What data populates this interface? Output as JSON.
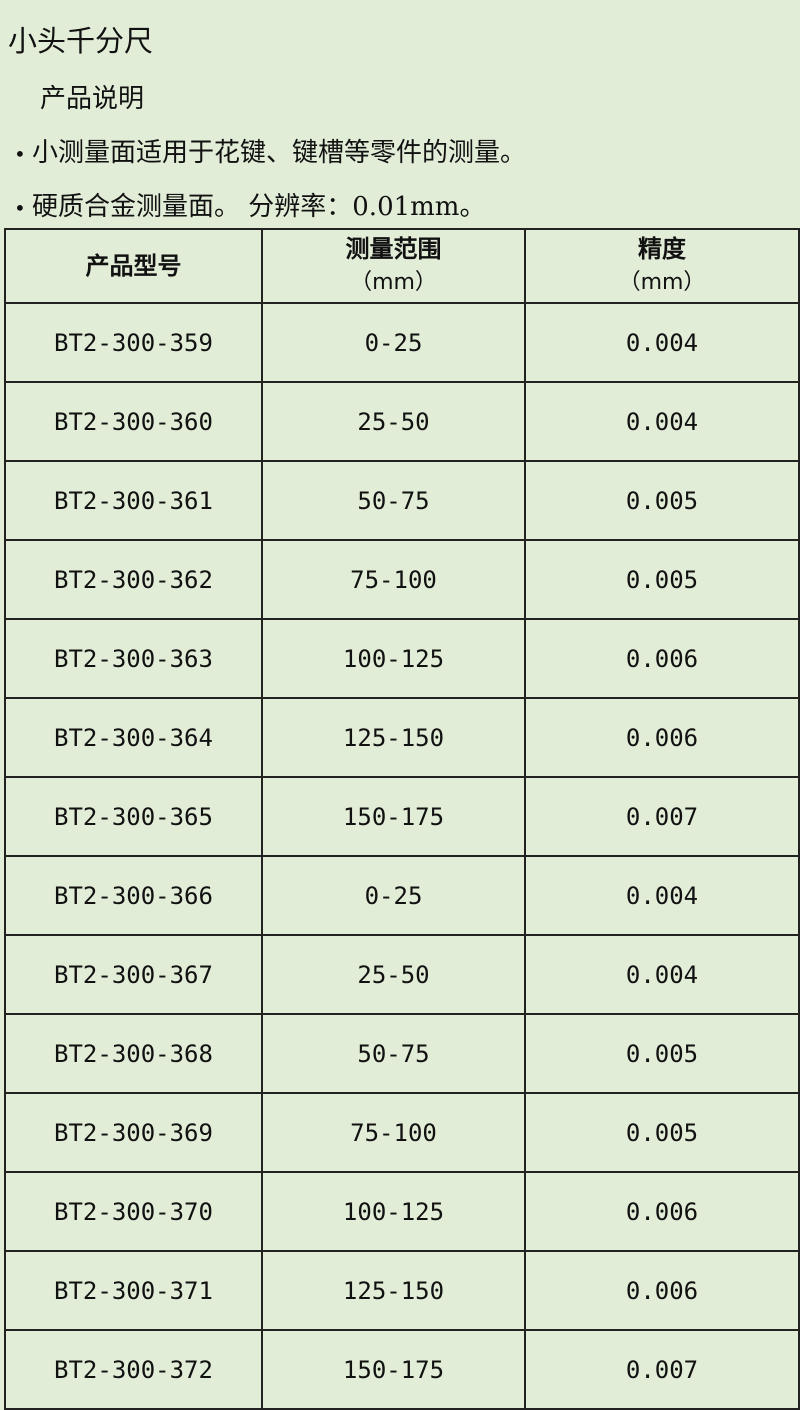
{
  "title": "小头千分尺",
  "subtitle": "产品说明",
  "bullets": [
    "小测量面适用于花键、键槽等零件的测量。",
    "硬质合金测量面。 分辨率：0.01mm。"
  ],
  "table": {
    "headers": [
      {
        "label": "产品型号",
        "unit": ""
      },
      {
        "label": "测量范围",
        "unit": "（mm）"
      },
      {
        "label": "精度",
        "unit": "（mm）"
      }
    ],
    "rows": [
      [
        "BT2-300-359",
        "0-25",
        "0.004"
      ],
      [
        "BT2-300-360",
        "25-50",
        "0.004"
      ],
      [
        "BT2-300-361",
        "50-75",
        "0.005"
      ],
      [
        "BT2-300-362",
        "75-100",
        "0.005"
      ],
      [
        "BT2-300-363",
        "100-125",
        "0.006"
      ],
      [
        "BT2-300-364",
        "125-150",
        "0.006"
      ],
      [
        "BT2-300-365",
        "150-175",
        "0.007"
      ],
      [
        "BT2-300-366",
        "0-25",
        "0.004"
      ],
      [
        "BT2-300-367",
        "25-50",
        "0.004"
      ],
      [
        "BT2-300-368",
        "50-75",
        "0.005"
      ],
      [
        "BT2-300-369",
        "75-100",
        "0.005"
      ],
      [
        "BT2-300-370",
        "100-125",
        "0.006"
      ],
      [
        "BT2-300-371",
        "125-150",
        "0.006"
      ],
      [
        "BT2-300-372",
        "150-175",
        "0.007"
      ]
    ]
  }
}
